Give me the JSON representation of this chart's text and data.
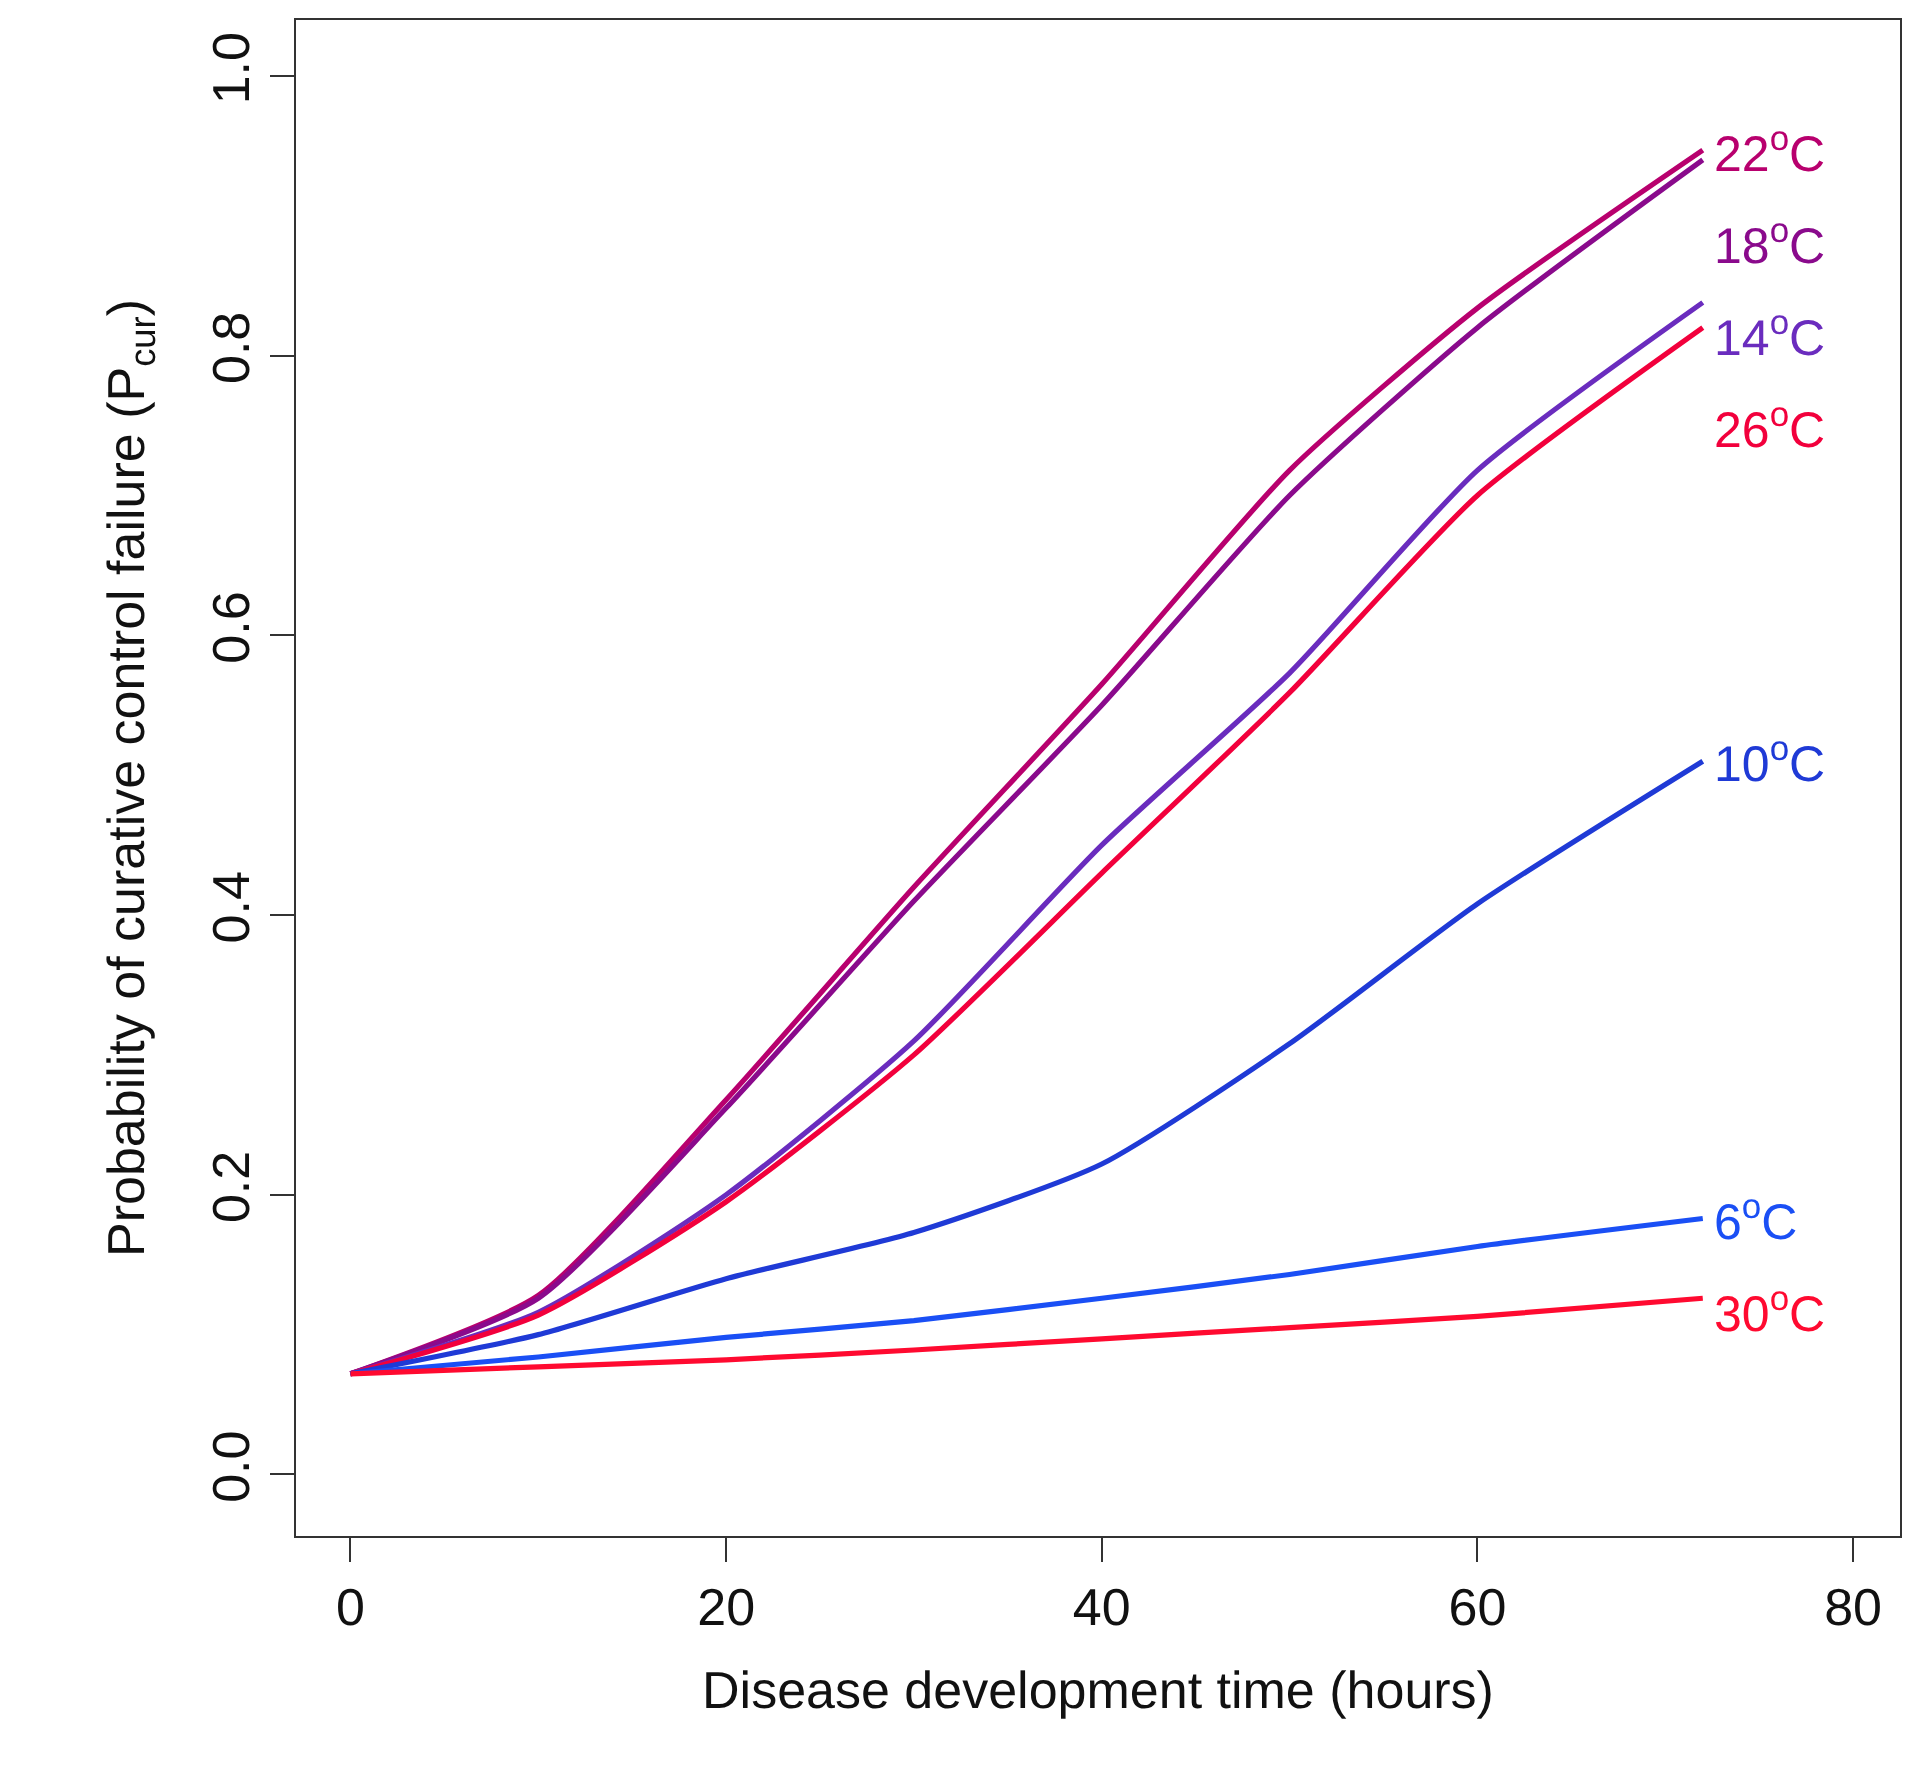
{
  "chart_data": {
    "type": "line",
    "xlabel": "Disease development time (hours)",
    "ylabel": "Probability of curative control failure (P$_{cur}$)",
    "x": [
      0,
      10,
      20,
      30,
      40,
      50,
      60,
      72
    ],
    "series": [
      {
        "name": "22$^{o}$C",
        "color": "#b8006e",
        "values": [
          0.072,
          0.128,
          0.268,
          0.42,
          0.565,
          0.718,
          0.834,
          0.947
        ]
      },
      {
        "name": "18$^{o}$C",
        "color": "#8a0a8c",
        "values": [
          0.072,
          0.126,
          0.262,
          0.41,
          0.55,
          0.7,
          0.82,
          0.94
        ]
      },
      {
        "name": "14$^{o}$C",
        "color": "#6a2cbe",
        "values": [
          0.072,
          0.116,
          0.2,
          0.31,
          0.45,
          0.573,
          0.718,
          0.838
        ]
      },
      {
        "name": "26$^{o}$C",
        "color": "#f2003c",
        "values": [
          0.072,
          0.114,
          0.195,
          0.3,
          0.43,
          0.559,
          0.7,
          0.82
        ]
      },
      {
        "name": "10$^{o}$C",
        "color": "#1f3ad6",
        "values": [
          0.072,
          0.1,
          0.14,
          0.173,
          0.222,
          0.308,
          0.408,
          0.51
        ]
      },
      {
        "name": "6$^{o}$C",
        "color": "#1a4ff5",
        "values": [
          0.072,
          0.084,
          0.098,
          0.11,
          0.126,
          0.143,
          0.163,
          0.183
        ]
      },
      {
        "name": "30$^{o}$C",
        "color": "#ff0a30",
        "values": [
          0.072,
          0.077,
          0.082,
          0.089,
          0.097,
          0.105,
          0.113,
          0.126
        ]
      }
    ],
    "xlim": [
      -2.9,
      82.5
    ],
    "xticks": [
      0,
      20,
      40,
      60,
      80
    ],
    "ylim": [
      -0.044,
      1.04
    ],
    "yticks": [
      {
        "value": 0,
        "label": "0.0"
      },
      {
        "value": 0.2,
        "label": "0.2"
      },
      {
        "value": 0.4,
        "label": "0.4"
      },
      {
        "value": 0.6,
        "label": "0.6"
      },
      {
        "value": 0.8,
        "label": "0.8"
      },
      {
        "value": 1,
        "label": "1.0"
      }
    ],
    "grid": false,
    "legend": false,
    "marker": "none",
    "line_style": "solid"
  }
}
